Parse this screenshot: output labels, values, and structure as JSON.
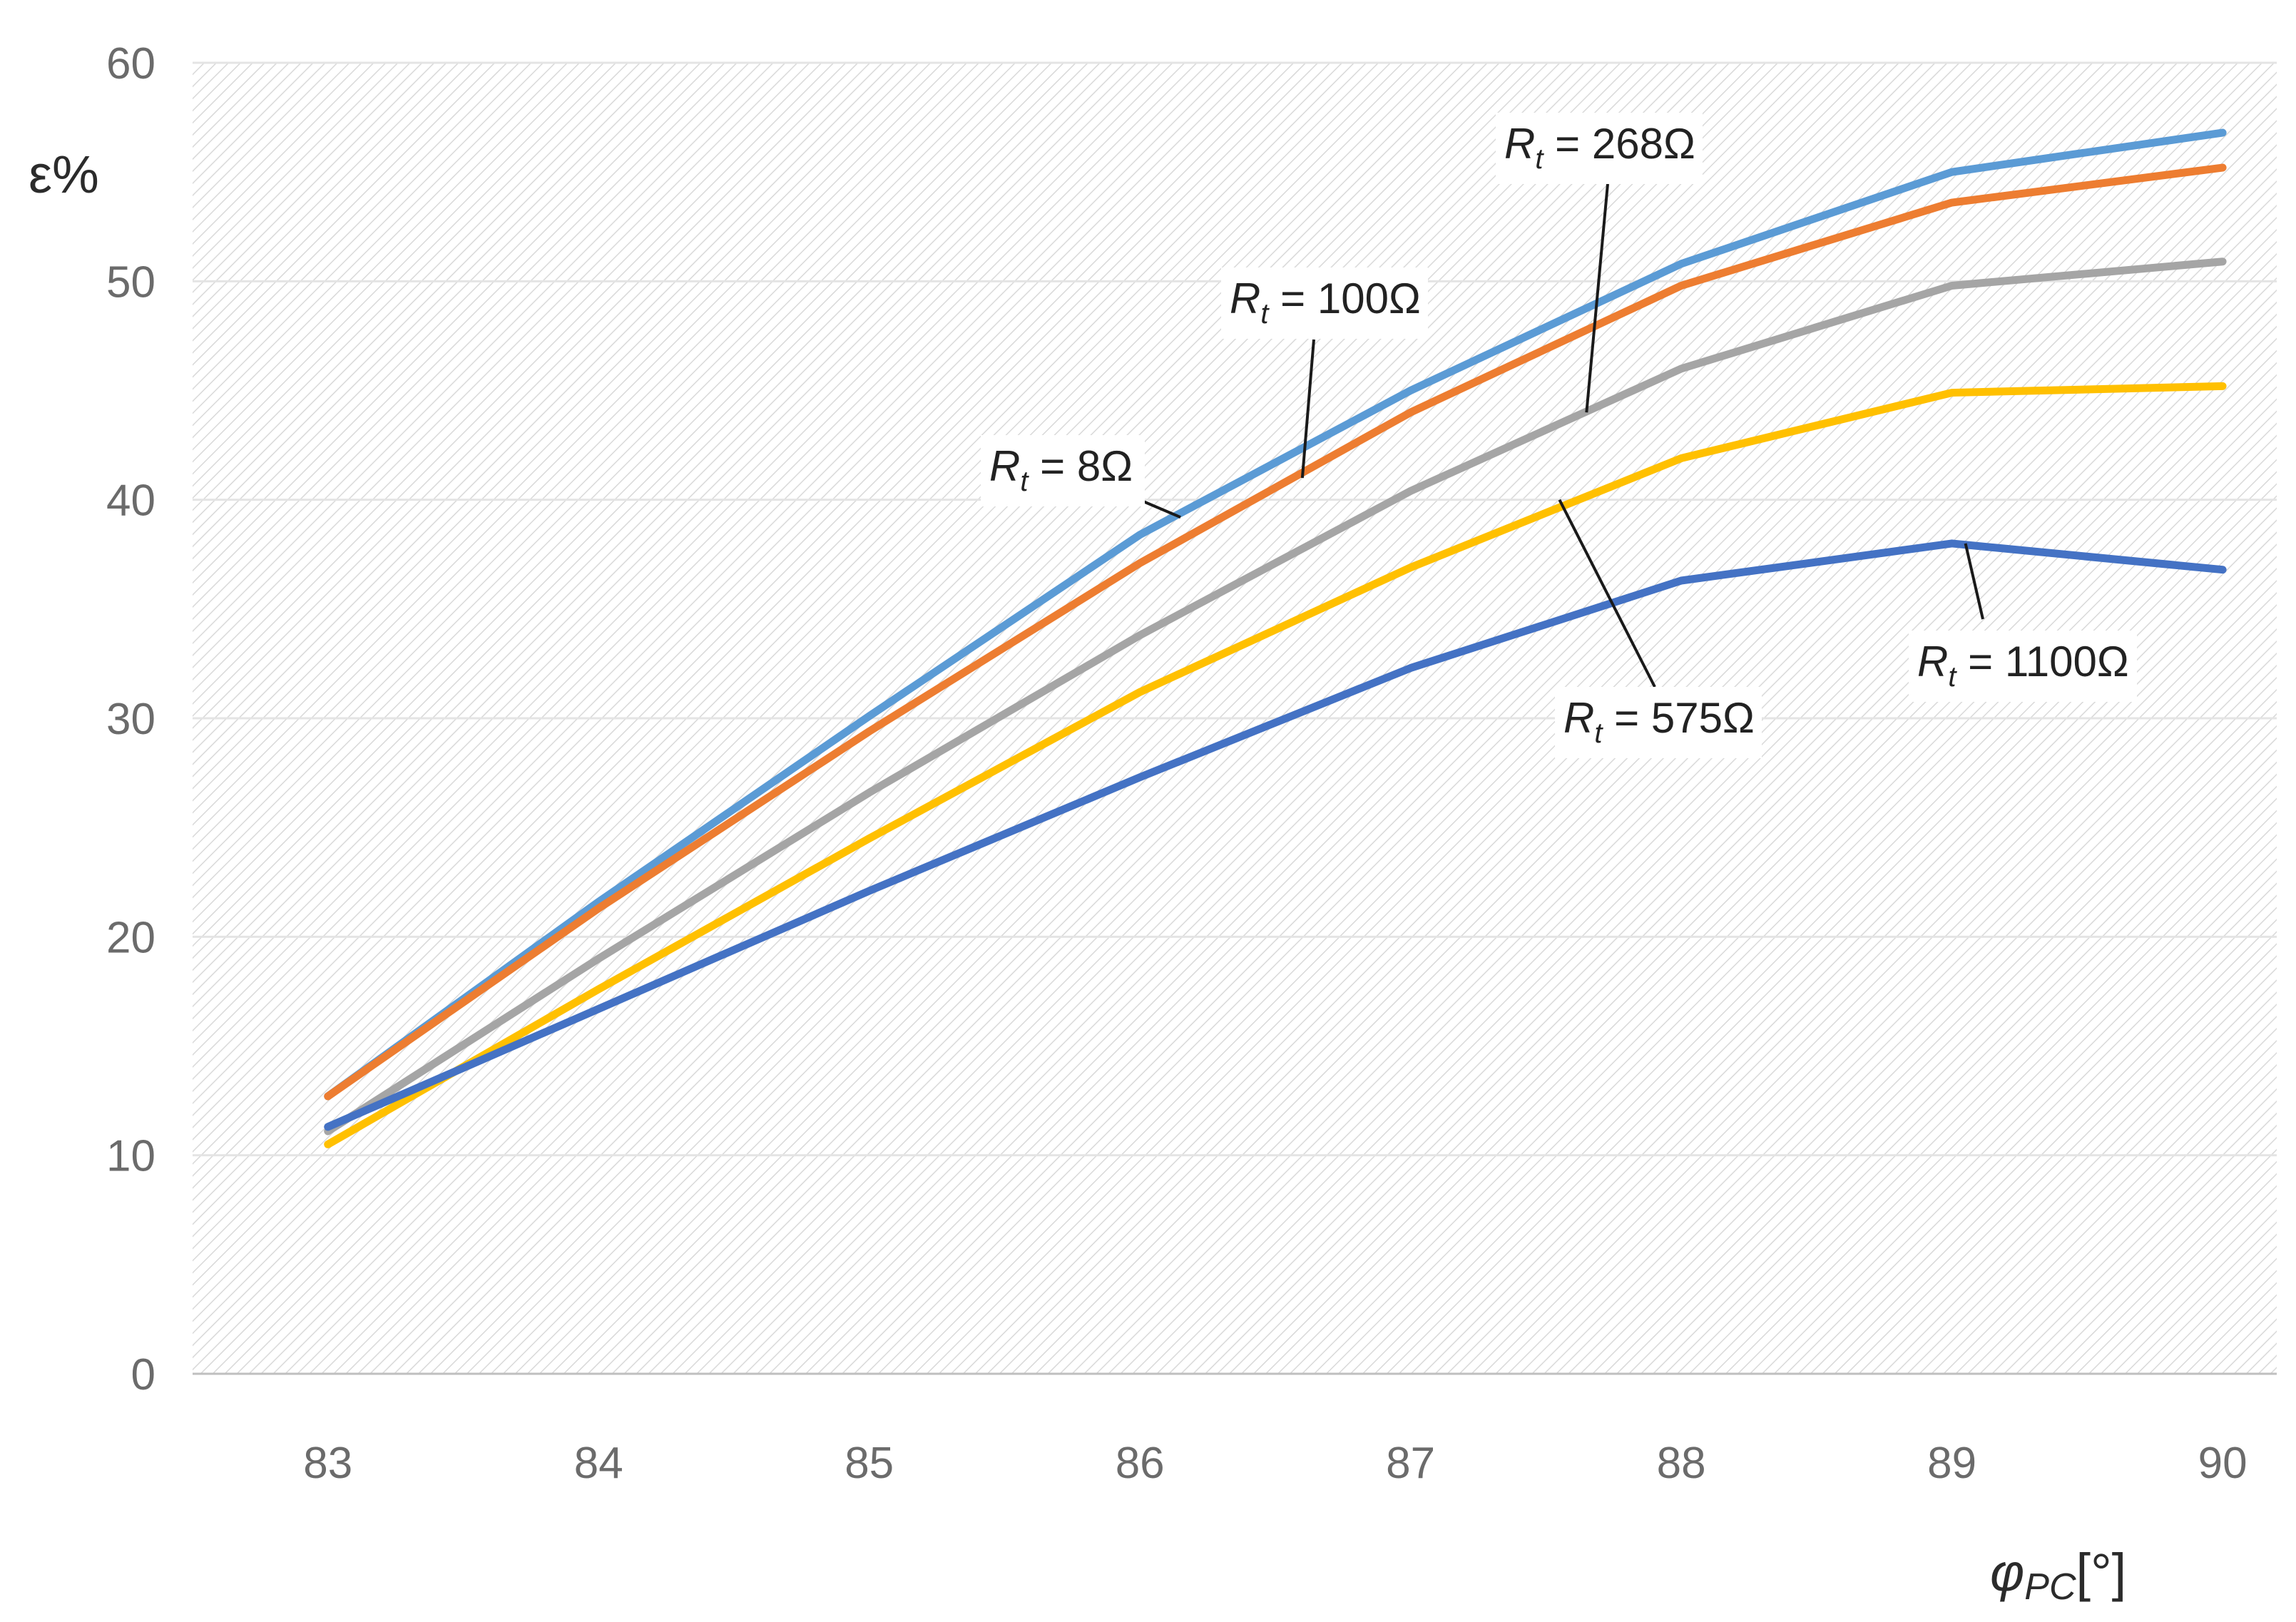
{
  "chart_data": {
    "type": "line",
    "title": "",
    "ylabel": "ε%",
    "xlabel": "φPC[°]",
    "xlabel_main": "φ",
    "xlabel_sub": "PC",
    "xlabel_unit": "[°]",
    "x": [
      83,
      84,
      85,
      86,
      87,
      88,
      89,
      90
    ],
    "xlim": [
      82.5,
      90.2
    ],
    "ylim": [
      0,
      60
    ],
    "xticks": [
      83,
      84,
      85,
      86,
      87,
      88,
      89,
      90
    ],
    "yticks": [
      0,
      10,
      20,
      30,
      40,
      50,
      60
    ],
    "grid": "horizontal",
    "legend": "none (inline annotations)",
    "series": [
      {
        "name": "Rt = 8Ω",
        "color": "#5b9bd5",
        "values": [
          12.7,
          21.6,
          30.1,
          38.4,
          45.0,
          50.8,
          55.0,
          56.8
        ]
      },
      {
        "name": "Rt = 100Ω",
        "color": "#ed7d31",
        "values": [
          12.7,
          21.3,
          29.4,
          37.1,
          44.0,
          49.8,
          53.6,
          55.2
        ]
      },
      {
        "name": "Rt = 268Ω",
        "color": "#a5a5a5",
        "values": [
          11.1,
          19.0,
          26.6,
          33.8,
          40.4,
          46.0,
          49.8,
          50.9
        ]
      },
      {
        "name": "Rt = 575Ω",
        "color": "#ffc000",
        "values": [
          10.5,
          17.6,
          24.5,
          31.2,
          36.9,
          41.9,
          44.9,
          45.2
        ]
      },
      {
        "name": "Rt = 1100Ω",
        "color": "#4472c4",
        "values": [
          11.3,
          16.7,
          22.1,
          27.3,
          32.3,
          36.3,
          38.0,
          36.8
        ]
      }
    ],
    "annotations": [
      {
        "series": 0,
        "label_main": "R",
        "label_sub": "t",
        "label_rest": " = 8Ω",
        "target": [
          86.15,
          39.2
        ]
      },
      {
        "series": 1,
        "label_main": "R",
        "label_sub": "t",
        "label_rest": " = 100Ω",
        "target": [
          86.6,
          41.0
        ]
      },
      {
        "series": 2,
        "label_main": "R",
        "label_sub": "t",
        "label_rest": " = 268Ω",
        "target": [
          87.65,
          44.0
        ]
      },
      {
        "series": 3,
        "label_main": "R",
        "label_sub": "t",
        "label_rest": " = 575Ω",
        "target": [
          87.55,
          40.0
        ]
      },
      {
        "series": 4,
        "label_main": "R",
        "label_sub": "t",
        "label_rest": " = 1100Ω",
        "target": [
          89.05,
          38.0
        ]
      }
    ]
  }
}
